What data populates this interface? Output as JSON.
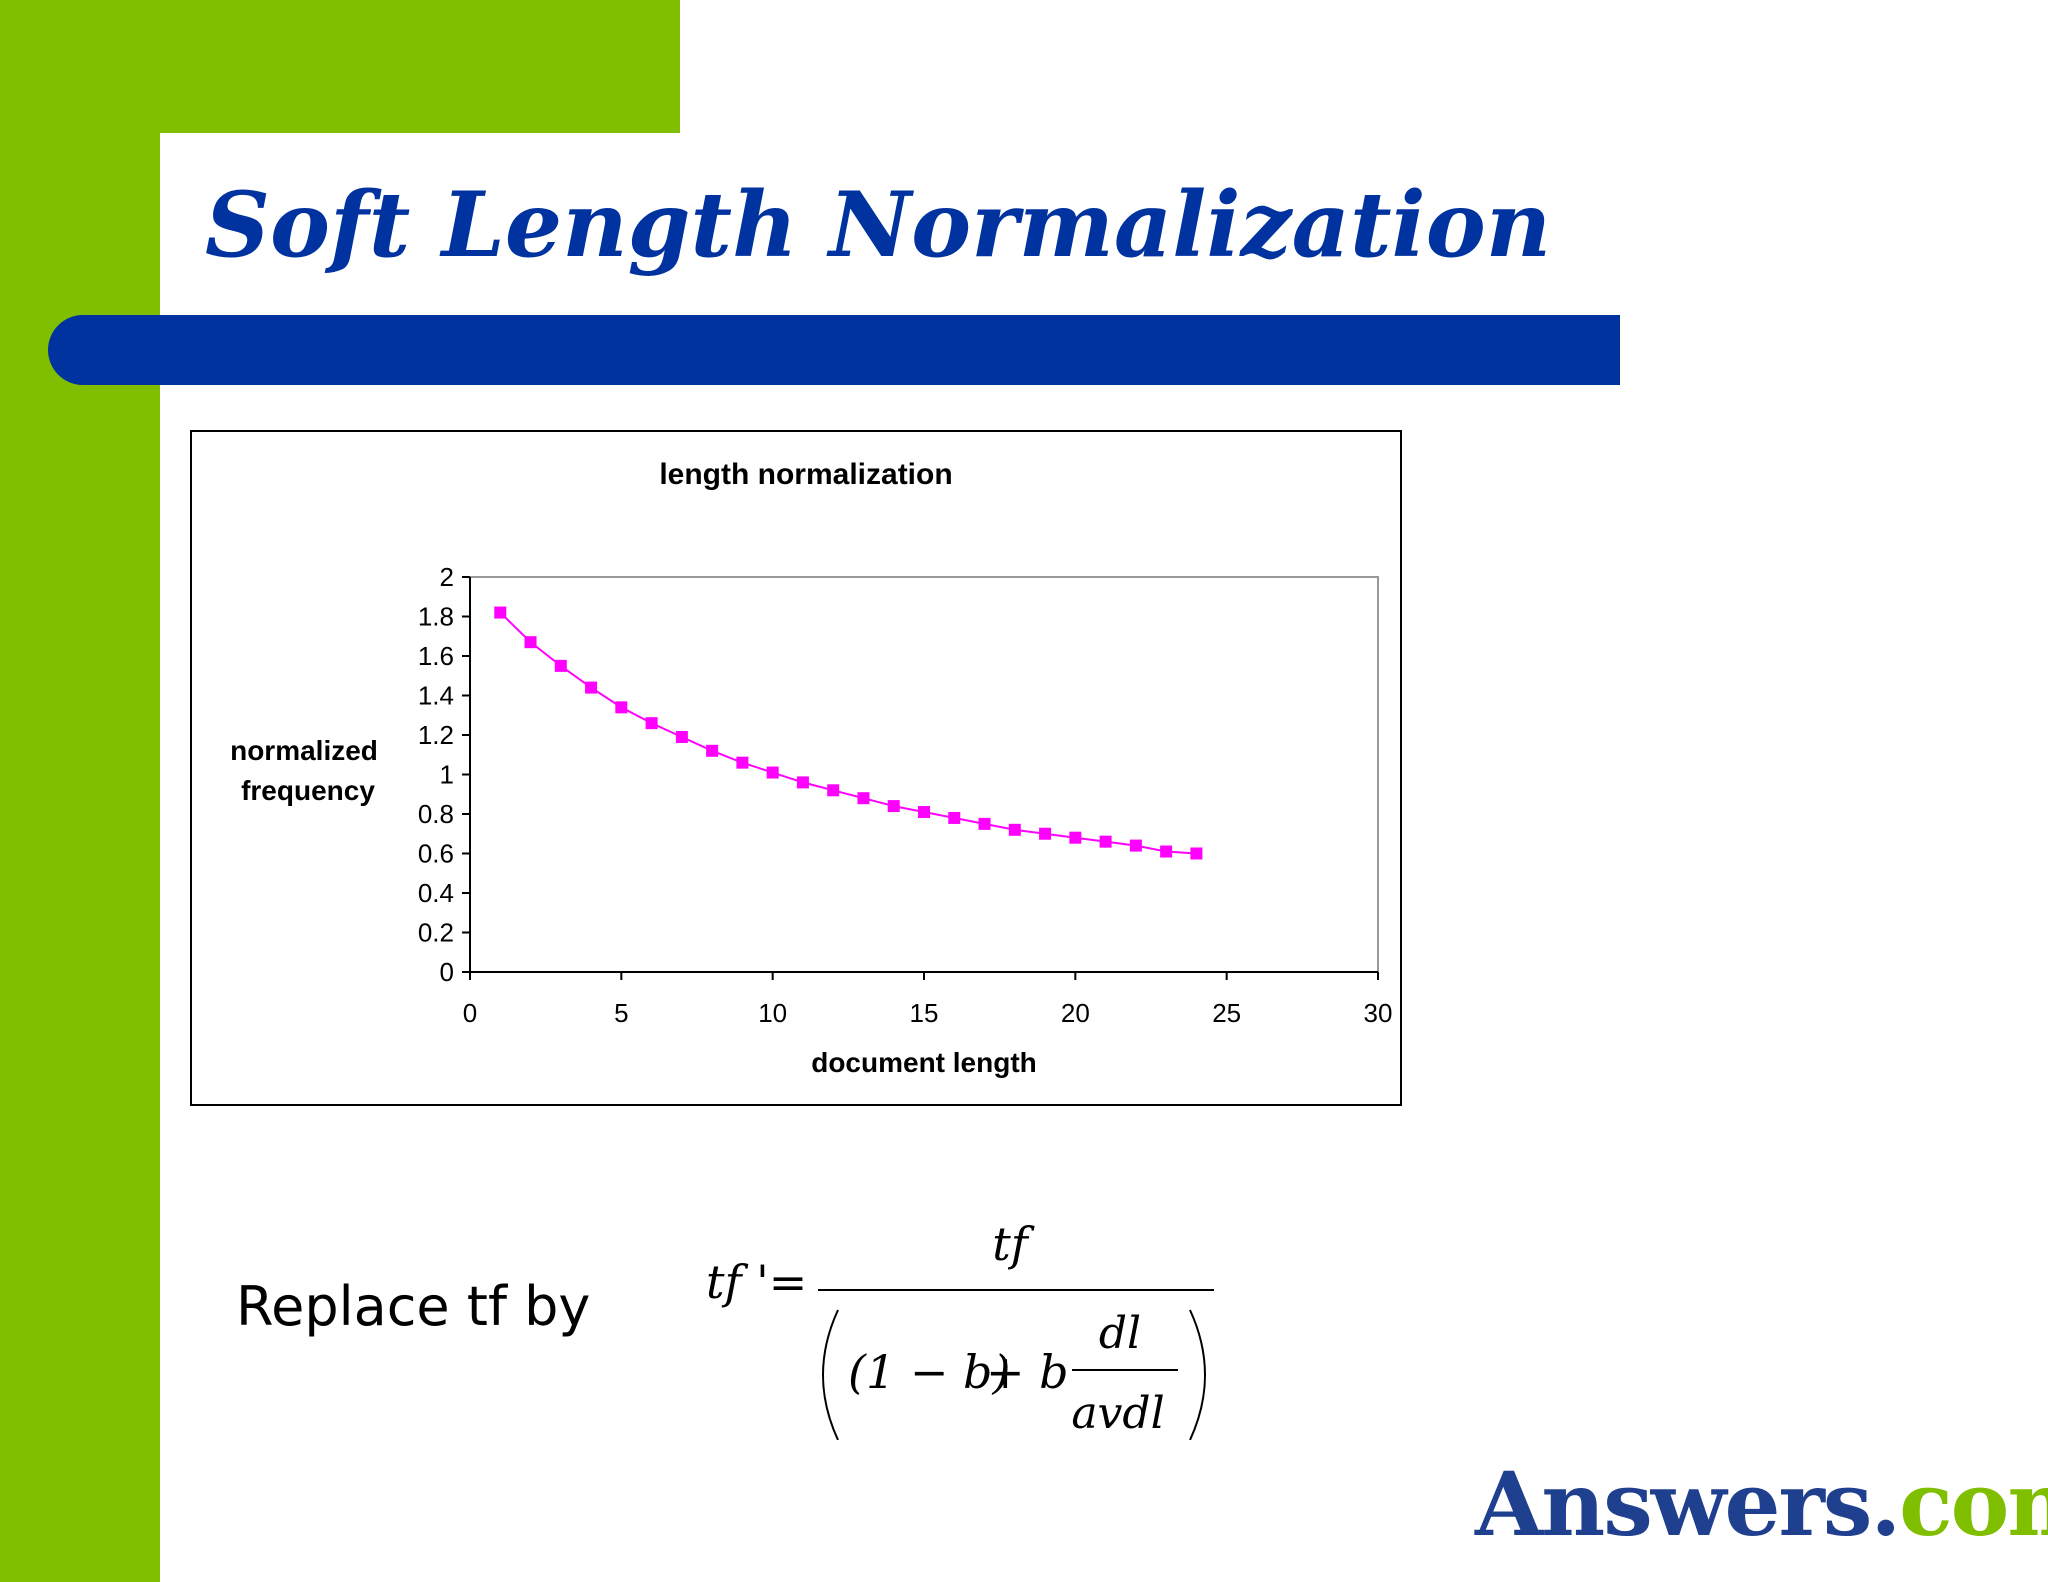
{
  "slide": {
    "title": "Soft Length Normalization",
    "body_text": "Replace tf by"
  },
  "formula": {
    "lhs": "tf '=",
    "numerator": "tf",
    "denominator_left": "(1 − b)",
    "plus_b": "+ b",
    "inner_numerator": "dl",
    "inner_denominator": "avdl"
  },
  "logo": {
    "part1": "Answers",
    "dot": ".",
    "part2": "com"
  },
  "colors": {
    "green": "#80bf00",
    "blue": "#0033a0",
    "series": "#ff00ff"
  },
  "chart_data": {
    "type": "line",
    "title": "length normalization",
    "xlabel": "document length",
    "ylabel_lines": [
      "normalized",
      "frequency"
    ],
    "xlim": [
      0,
      30
    ],
    "ylim": [
      0,
      2
    ],
    "xticks": [
      0,
      5,
      10,
      15,
      20,
      25,
      30
    ],
    "yticks": [
      0,
      0.2,
      0.4,
      0.6,
      0.8,
      1,
      1.2,
      1.4,
      1.6,
      1.8,
      2
    ],
    "grid": false,
    "legend": "none",
    "series": [
      {
        "x": [
          1,
          2,
          3,
          4,
          5,
          6,
          7,
          8,
          9,
          10,
          11,
          12,
          13,
          14,
          15,
          16,
          17,
          18,
          19,
          20,
          21,
          22,
          23,
          24
        ],
        "y": [
          1.82,
          1.67,
          1.55,
          1.44,
          1.34,
          1.26,
          1.19,
          1.12,
          1.06,
          1.01,
          0.96,
          0.92,
          0.88,
          0.84,
          0.81,
          0.78,
          0.75,
          0.72,
          0.7,
          0.68,
          0.66,
          0.64,
          0.61,
          0.6
        ],
        "marker": "square",
        "color": "#ff00ff"
      }
    ]
  }
}
